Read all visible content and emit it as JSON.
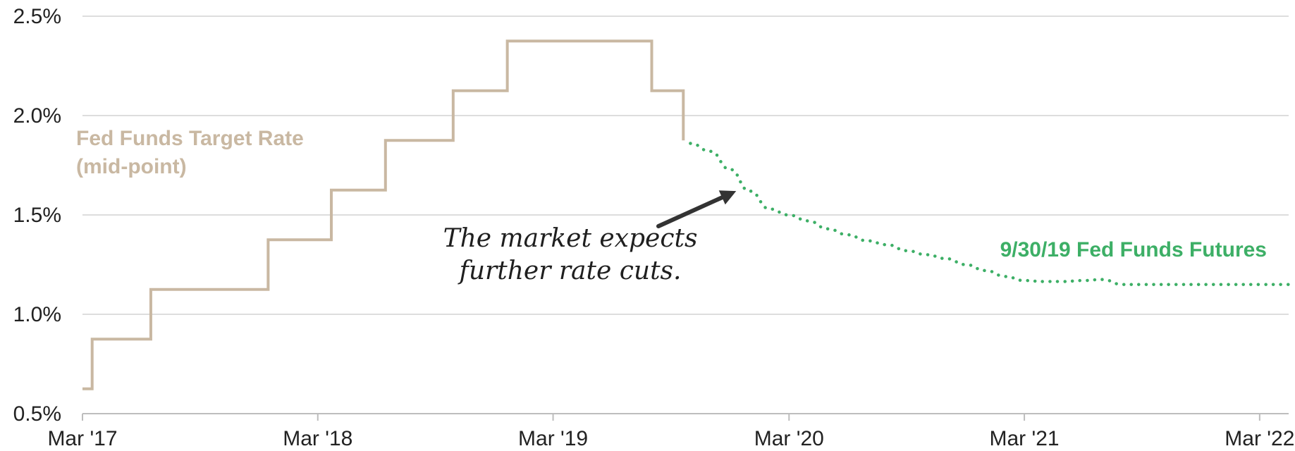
{
  "chart_data": {
    "type": "line",
    "title": "",
    "xlabel": "",
    "ylabel": "",
    "ylim": [
      0.5,
      2.5
    ],
    "xlim": [
      "2017-03-01",
      "2022-04-15"
    ],
    "grid": "horizontal",
    "y_ticks": [
      {
        "value": 0.5,
        "label": "0.5%"
      },
      {
        "value": 1.0,
        "label": "1.0%"
      },
      {
        "value": 1.5,
        "label": "1.5%"
      },
      {
        "value": 2.0,
        "label": "2.0%"
      },
      {
        "value": 2.5,
        "label": "2.5%"
      }
    ],
    "x_ticks": [
      {
        "date": "2017-03-01",
        "label": "Mar '17"
      },
      {
        "date": "2018-03-01",
        "label": "Mar '18"
      },
      {
        "date": "2019-03-01",
        "label": "Mar '19"
      },
      {
        "date": "2020-03-01",
        "label": "Mar '20"
      },
      {
        "date": "2021-03-01",
        "label": "Mar '21"
      },
      {
        "date": "2022-03-01",
        "label": "Mar '22"
      }
    ],
    "series": [
      {
        "name": "Fed Funds Target Rate (mid-point)",
        "label_lines": [
          "Fed Funds Target Rate",
          "(mid-point)"
        ],
        "color": "#c9b8a2",
        "style": "step",
        "points": [
          {
            "x": "2017-03-01",
            "y": 0.625
          },
          {
            "x": "2017-03-16",
            "y": 0.875
          },
          {
            "x": "2017-06-15",
            "y": 1.125
          },
          {
            "x": "2017-12-14",
            "y": 1.375
          },
          {
            "x": "2018-03-22",
            "y": 1.625
          },
          {
            "x": "2018-06-14",
            "y": 1.875
          },
          {
            "x": "2018-09-27",
            "y": 2.125
          },
          {
            "x": "2018-12-20",
            "y": 2.375
          },
          {
            "x": "2019-08-01",
            "y": 2.125
          },
          {
            "x": "2019-09-19",
            "y": 1.875
          }
        ]
      },
      {
        "name": "9/30/19 Fed Funds Futures",
        "label_lines": [
          "9/30/19 Fed Funds Futures"
        ],
        "color": "#3daf66",
        "style": "dotted",
        "points": [
          {
            "x": "2019-09-30",
            "y": 1.86
          },
          {
            "x": "2019-10-31",
            "y": 1.82
          },
          {
            "x": "2019-11-30",
            "y": 1.73
          },
          {
            "x": "2019-12-31",
            "y": 1.62
          },
          {
            "x": "2020-01-31",
            "y": 1.53
          },
          {
            "x": "2020-02-29",
            "y": 1.5
          },
          {
            "x": "2020-03-31",
            "y": 1.47
          },
          {
            "x": "2020-04-30",
            "y": 1.43
          },
          {
            "x": "2020-05-31",
            "y": 1.4
          },
          {
            "x": "2020-06-30",
            "y": 1.37
          },
          {
            "x": "2020-07-31",
            "y": 1.35
          },
          {
            "x": "2020-08-31",
            "y": 1.32
          },
          {
            "x": "2020-09-30",
            "y": 1.3
          },
          {
            "x": "2020-10-31",
            "y": 1.28
          },
          {
            "x": "2020-11-30",
            "y": 1.25
          },
          {
            "x": "2020-12-31",
            "y": 1.22
          },
          {
            "x": "2021-01-31",
            "y": 1.19
          },
          {
            "x": "2021-02-28",
            "y": 1.17
          },
          {
            "x": "2021-03-31",
            "y": 1.165
          },
          {
            "x": "2021-04-30",
            "y": 1.165
          },
          {
            "x": "2021-05-31",
            "y": 1.17
          },
          {
            "x": "2021-06-30",
            "y": 1.175
          },
          {
            "x": "2021-07-31",
            "y": 1.15
          },
          {
            "x": "2021-08-31",
            "y": 1.15
          },
          {
            "x": "2021-10-31",
            "y": 1.15
          },
          {
            "x": "2021-12-31",
            "y": 1.15
          },
          {
            "x": "2022-02-28",
            "y": 1.15
          },
          {
            "x": "2022-04-15",
            "y": 1.15
          }
        ]
      }
    ],
    "annotations": [
      {
        "text_lines": [
          "The market expects",
          "further rate cuts."
        ],
        "arrow_to": {
          "x": "2019-12-10",
          "y": 1.62
        },
        "arrow_color": "#333333"
      }
    ]
  }
}
